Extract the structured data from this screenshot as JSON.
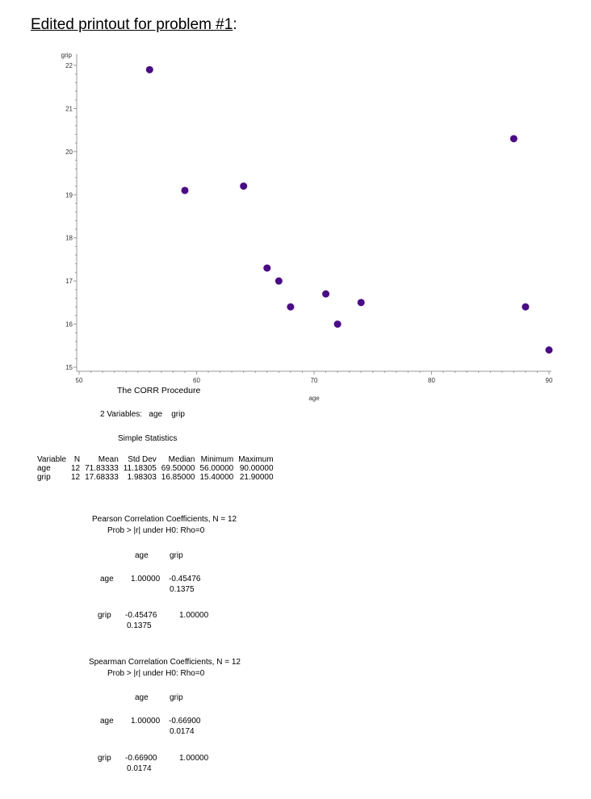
{
  "title": "Edited printout for problem #1",
  "title_suffix": ":",
  "chart_data": {
    "type": "scatter",
    "xlabel": "age",
    "ylabel": "grip",
    "xlim": [
      50,
      90
    ],
    "ylim": [
      15,
      22
    ],
    "xticks": [
      50,
      60,
      70,
      80,
      90
    ],
    "yticks": [
      15,
      16,
      17,
      18,
      19,
      20,
      21,
      22
    ],
    "marker_color": "#4b0a8a",
    "points": [
      [
        56,
        21.9
      ],
      [
        59,
        19.1
      ],
      [
        64,
        19.2
      ],
      [
        66,
        17.3
      ],
      [
        67,
        17.0
      ],
      [
        68,
        16.4
      ],
      [
        71,
        16.7
      ],
      [
        72,
        16.0
      ],
      [
        74,
        16.5
      ],
      [
        87,
        20.3
      ],
      [
        88,
        16.4
      ],
      [
        90,
        15.4
      ]
    ]
  },
  "proc": {
    "title": "The CORR Procedure",
    "vars_label": "2 Variables:",
    "vars": [
      "age",
      "grip"
    ]
  },
  "simple": {
    "title": "Simple Statistics",
    "headers": [
      "Variable",
      "N",
      "Mean",
      "Std Dev",
      "Median",
      "Minimum",
      "Maximum"
    ],
    "rows": [
      [
        "age",
        "12",
        "71.83333",
        "11.18305",
        "69.50000",
        "56.00000",
        "90.00000"
      ],
      [
        "grip",
        "12",
        "17.68333",
        "1.98303",
        "16.85000",
        "15.40000",
        "21.90000"
      ]
    ]
  },
  "pearson": {
    "title": "Pearson Correlation Coefficients, N = 12",
    "subtitle": "Prob > |r| under H0: Rho=0",
    "cols": [
      "age",
      "grip"
    ],
    "rows": [
      {
        "name": "age",
        "r": [
          "1.00000",
          "-0.45476"
        ],
        "p": [
          "",
          "0.1375"
        ]
      },
      {
        "name": "grip",
        "r": [
          "-0.45476",
          "1.00000"
        ],
        "p": [
          "0.1375",
          ""
        ]
      }
    ]
  },
  "spearman": {
    "title": "Spearman Correlation Coefficients, N = 12",
    "subtitle": "Prob > |r| under H0: Rho=0",
    "cols": [
      "age",
      "grip"
    ],
    "rows": [
      {
        "name": "age",
        "r": [
          "1.00000",
          "-0.66900"
        ],
        "p": [
          "",
          "0.0174"
        ]
      },
      {
        "name": "grip",
        "r": [
          "-0.66900",
          "1.00000"
        ],
        "p": [
          "0.0174",
          ""
        ]
      }
    ]
  }
}
